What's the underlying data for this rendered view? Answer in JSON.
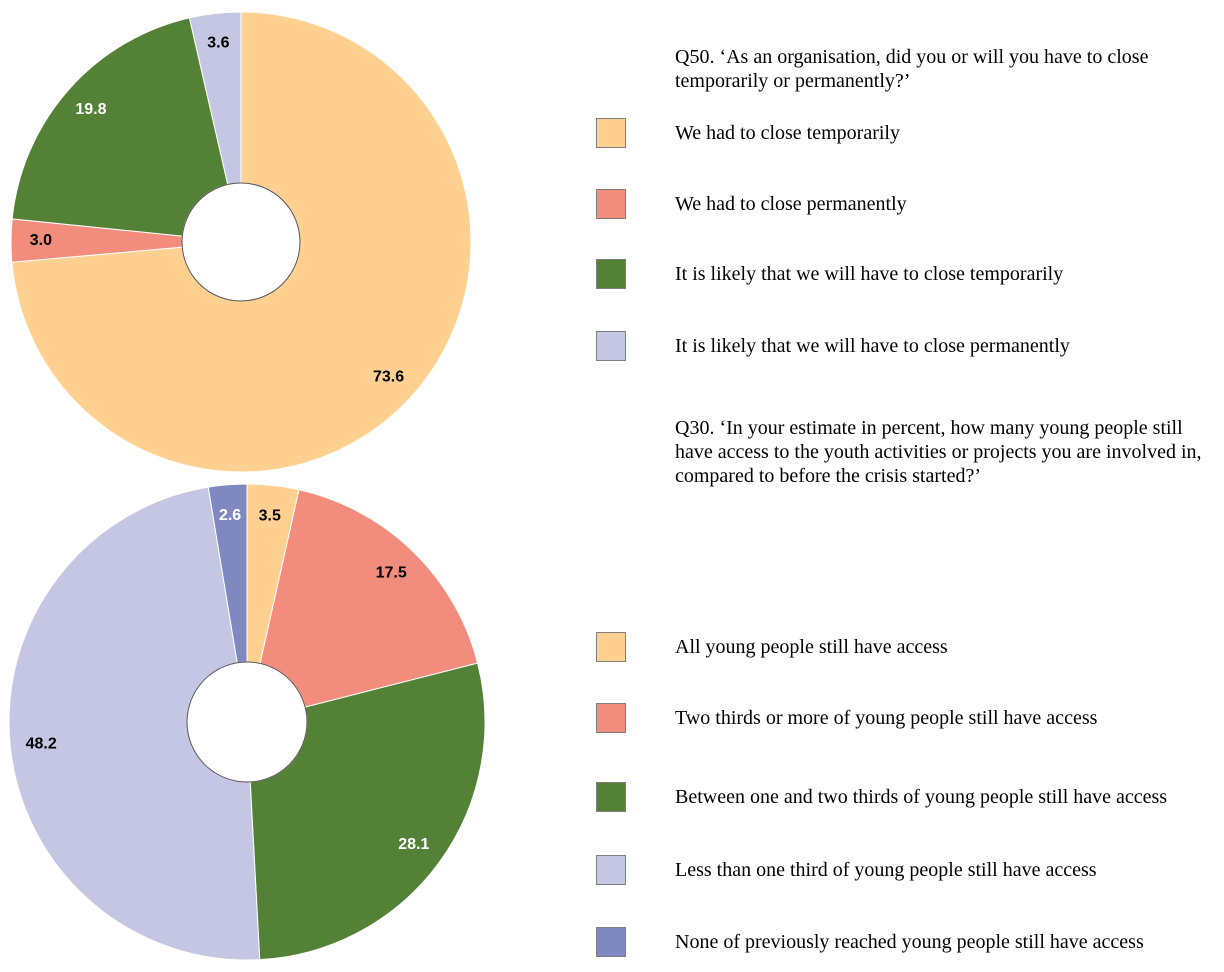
{
  "chart_data": [
    {
      "type": "donut",
      "title": "Q50. ‘As an organisation, did you or will you have to close temporarily or permanently?’",
      "categories": [
        "We had to close temporarily",
        "We had to close permanently",
        "It is likely that we will have to close temporarily",
        "It is likely that we will have to close permanently"
      ],
      "values": [
        73.6,
        3.0,
        19.8,
        3.6
      ],
      "value_labels": [
        "73.6",
        "3.0",
        "19.8",
        "3.6"
      ],
      "colors": [
        "#FFD08F",
        "#F28C7C",
        "#538135",
        "#C5C6E4"
      ]
    },
    {
      "type": "donut",
      "title": "Q30. ‘In your estimate in percent, how many young people still have access to the youth activities or projects you are involved in, compared to before the crisis started?’",
      "categories": [
        "All young people still have access",
        "Two thirds or more of young people still have access",
        "Between one and two thirds of young people still have access",
        "Less than one third of young people still have access",
        "None of previously reached young people still have access"
      ],
      "values": [
        3.5,
        17.5,
        28.1,
        48.2,
        2.6
      ],
      "colors": [
        "#FFD08F",
        "#F28C7C",
        "#538135",
        "#C5C6E4",
        "#8088C2"
      ]
    }
  ]
}
